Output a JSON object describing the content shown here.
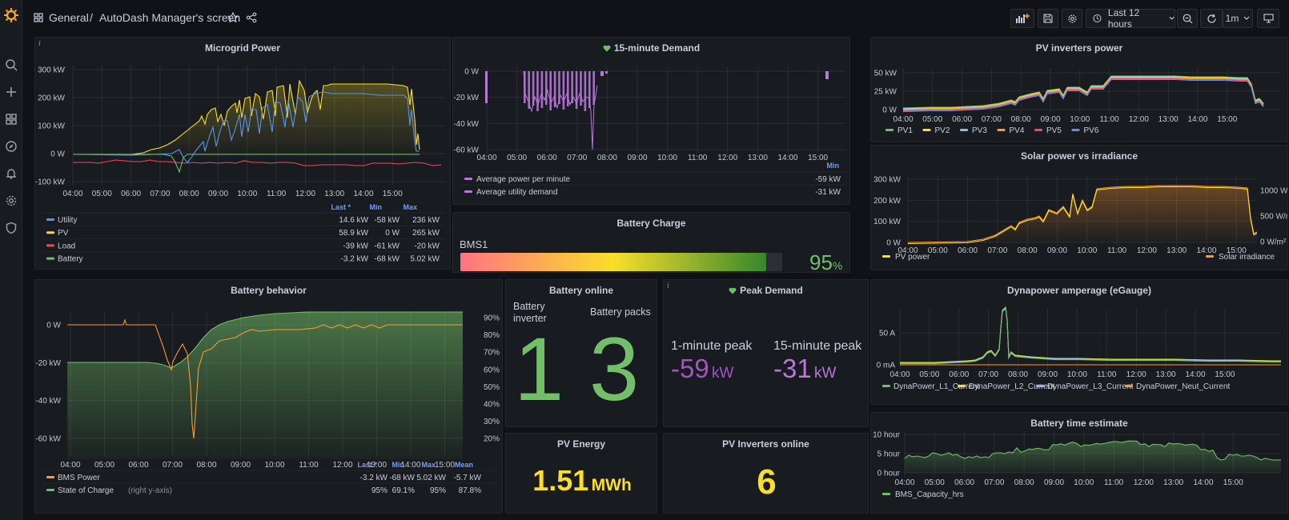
{
  "header": {
    "breadcrumb_folder": "General",
    "breadcrumb_sep": "/",
    "dashboard_title": "AutoDash Manager's screen",
    "time_range": "Last 12 hours",
    "refresh_interval": "1m"
  },
  "colors": {
    "green": "#73bf69",
    "yellow": "#fade2a",
    "blue": "#5794f2",
    "red": "#f2495c",
    "orange": "#ff9830",
    "purple": "#b877d9",
    "brand": "#f5a623"
  },
  "time_ticks": [
    "04:00",
    "05:00",
    "06:00",
    "07:00",
    "08:00",
    "09:00",
    "10:00",
    "11:00",
    "12:00",
    "13:00",
    "14:00",
    "15:00"
  ],
  "panels": {
    "microgrid": {
      "title": "Microgrid Power",
      "yticks": [
        "300 kW",
        "200 kW",
        "100 kW",
        "0 W",
        "-100 kW"
      ],
      "legend_headers": [
        "Last *",
        "Min",
        "Max"
      ],
      "legend": [
        {
          "name": "Utility",
          "color": "#5794f2",
          "last": "14.6 kW",
          "min": "-58 kW",
          "max": "236 kW"
        },
        {
          "name": "PV",
          "color": "#fade2a",
          "last": "58.9 kW",
          "min": "0 W",
          "max": "265 kW"
        },
        {
          "name": "Load",
          "color": "#f2495c",
          "last": "-39 kW",
          "min": "-61 kW",
          "max": "-20 kW"
        },
        {
          "name": "Battery",
          "color": "#73bf69",
          "last": "-3.2 kW",
          "min": "-68 kW",
          "max": "5.02 kW"
        }
      ]
    },
    "demand15": {
      "title": "15-minute Demand",
      "yticks": [
        "0 W",
        "-20 kW",
        "-40 kW",
        "-60 kW"
      ],
      "legend_header": "Min",
      "legend": [
        {
          "name": "Average power per minute",
          "color": "#b877d9",
          "min": "-59 kW"
        },
        {
          "name": "Average utility demand",
          "color": "#b877d9",
          "min": "-31 kW"
        }
      ]
    },
    "pvpower": {
      "title": "PV inverters power",
      "yticks": [
        "50 kW",
        "25 kW",
        "0 W"
      ],
      "legend": [
        {
          "name": "PV1",
          "color": "#73bf69"
        },
        {
          "name": "PV2",
          "color": "#fade2a"
        },
        {
          "name": "PV3",
          "color": "#8ab8ff"
        },
        {
          "name": "PV4",
          "color": "#ff9830"
        },
        {
          "name": "PV5",
          "color": "#f2495c"
        },
        {
          "name": "PV6",
          "color": "#5794f2"
        }
      ]
    },
    "solar": {
      "title": "Solar power vs irradiance",
      "yticks": [
        "300 kW",
        "200 kW",
        "100 kW",
        "0 W"
      ],
      "yticks_right": [
        "1000 W/m²",
        "500 W/m²",
        "0 W/m²"
      ],
      "legend": [
        {
          "name": "PV power",
          "color": "#fade2a"
        },
        {
          "name": "Solar irradiance",
          "color": "#ff9830"
        }
      ]
    },
    "battery_charge": {
      "title": "Battery Charge",
      "bar_label": "BMS1",
      "value": "95",
      "unit": "%",
      "fraction": 0.95
    },
    "battery_behavior": {
      "title": "Battery behavior",
      "yticks": [
        "0 W",
        "-20 kW",
        "-40 kW",
        "-60 kW"
      ],
      "yticks_right": [
        "90%",
        "80%",
        "70%",
        "60%",
        "50%",
        "40%",
        "30%",
        "20%"
      ],
      "legend_headers": [
        "Last *",
        "Min",
        "Max",
        "Mean"
      ],
      "legend": [
        {
          "name": "BMS Power",
          "note": "",
          "color": "#ff9830",
          "last": "-3.2 kW",
          "min": "-68 kW",
          "max": "5.02 kW",
          "mean": "-5.7 kW"
        },
        {
          "name": "State of Charge",
          "note": "(right y-axis)",
          "color": "#73bf69",
          "last": "95%",
          "min": "69.1%",
          "max": "95%",
          "mean": "87.8%"
        }
      ]
    },
    "battery_online": {
      "title": "Battery online",
      "stat1_label": "Battery inverter",
      "stat1_value": "1",
      "stat2_label": "Battery packs",
      "stat2_value": "3"
    },
    "peak_demand": {
      "title": "Peak Demand",
      "stat1_label": "1-minute peak",
      "stat1_value": "-59",
      "stat1_unit": "kW",
      "stat2_label": "15-minute peak",
      "stat2_value": "-31",
      "stat2_unit": "kW"
    },
    "pv_energy": {
      "title": "PV Energy",
      "value": "1.51",
      "unit": "MWh"
    },
    "pv_online": {
      "title": "PV Inverters online",
      "value": "6"
    },
    "dynapower": {
      "title": "Dynapower amperage (eGauge)",
      "yticks": [
        "50 A",
        "0 mA"
      ],
      "legend": [
        {
          "name": "DynaPower_L1_Current",
          "color": "#73bf69"
        },
        {
          "name": "DynaPower_L2_Current",
          "color": "#fade2a"
        },
        {
          "name": "DynaPower_L3_Current",
          "color": "#8ab8ff"
        },
        {
          "name": "DynaPower_Neut_Current",
          "color": "#ff9830"
        }
      ]
    },
    "battery_time": {
      "title": "Battery time estimate",
      "yticks": [
        "10 hour",
        "5 hour",
        "0 hour"
      ],
      "legend": [
        {
          "name": "BMS_Capacity_hrs",
          "color": "#73bf69"
        }
      ]
    }
  }
}
